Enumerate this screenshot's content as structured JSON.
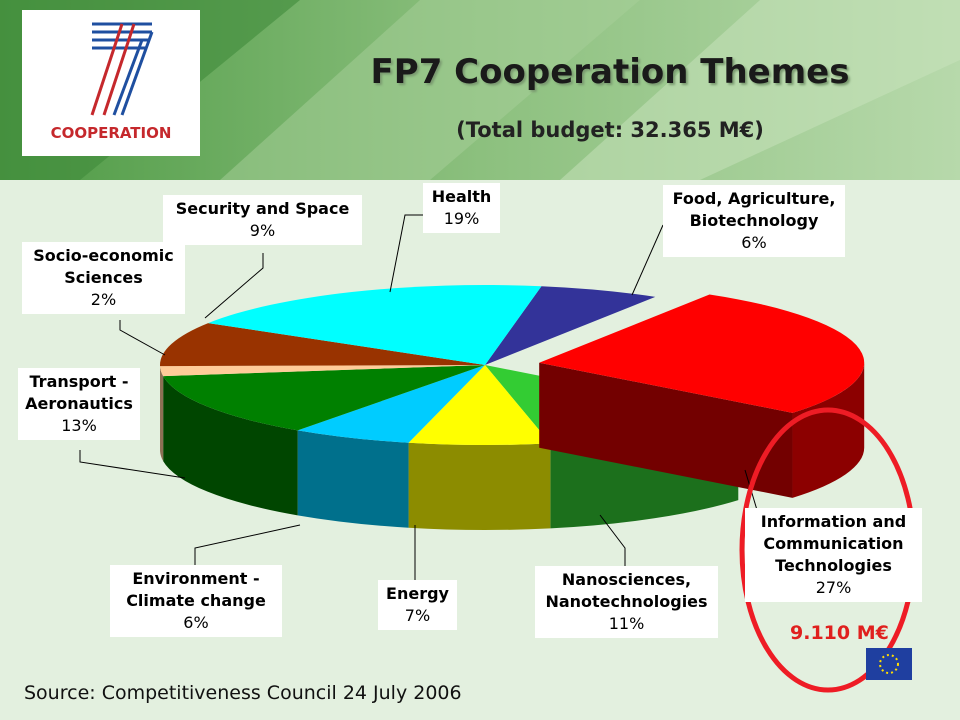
{
  "logo_text": "COOPERATION",
  "chart_data": {
    "type": "pie",
    "title": "FP7 Cooperation Themes",
    "subtitle": "(Total budget: 32.365 M€)",
    "categories": [
      "Food, Agriculture, Biotechnology",
      "Information and Communication Technologies",
      "Nanosciences, Nanotechnologies",
      "Energy",
      "Environment - Climate change",
      "Transport - Aeronautics",
      "Socio-economic Sciences",
      "Security and Space",
      "Health"
    ],
    "values": [
      6,
      27,
      11,
      7,
      6,
      13,
      2,
      9,
      19
    ],
    "value_labels": [
      "6%",
      "27%",
      "11%",
      "7%",
      "6%",
      "13%",
      "2%",
      "9%",
      "19%"
    ],
    "colors": [
      "#333399",
      "#ff0000",
      "#33cc33",
      "#ffff00",
      "#00ccff",
      "#008000",
      "#ffcc99",
      "#993300",
      "#00ffff"
    ],
    "annotation": "9.110 M€",
    "source": "Source: Competitiveness Council 24 July 2006"
  }
}
